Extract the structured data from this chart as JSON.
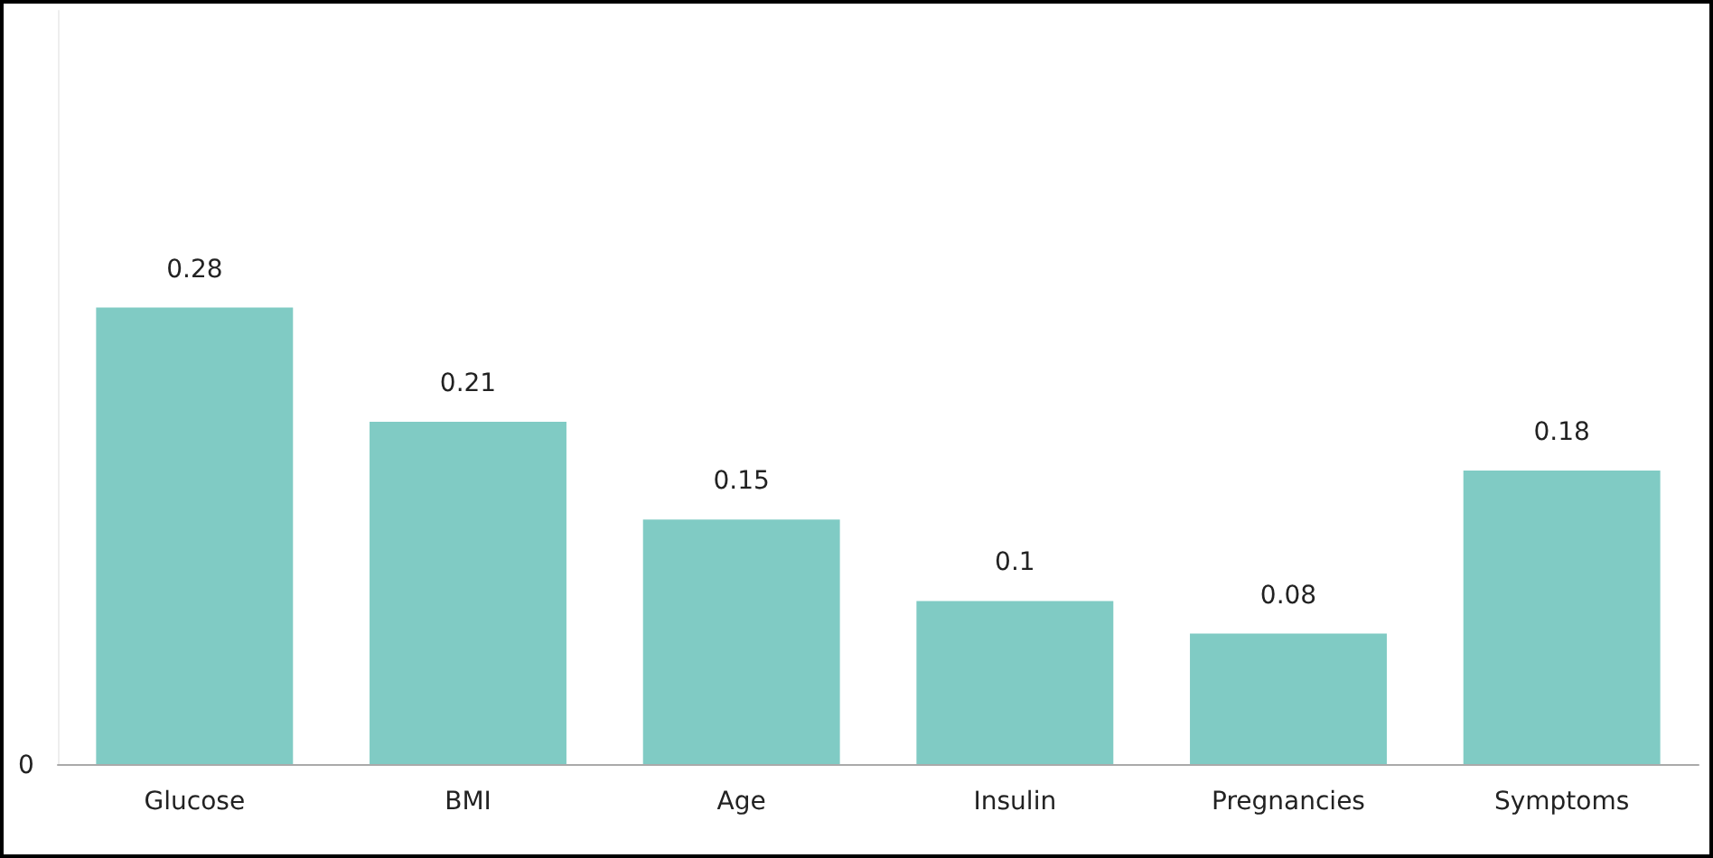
{
  "chart_data": {
    "type": "bar",
    "categories": [
      "Glucose",
      "BMI",
      "Age",
      "Insulin",
      "Pregnancies",
      "Symptoms"
    ],
    "values": [
      0.28,
      0.21,
      0.15,
      0.1,
      0.08,
      0.18
    ],
    "color": "#80cbc4",
    "annotations": [
      "0"
    ],
    "data_labels": true
  }
}
